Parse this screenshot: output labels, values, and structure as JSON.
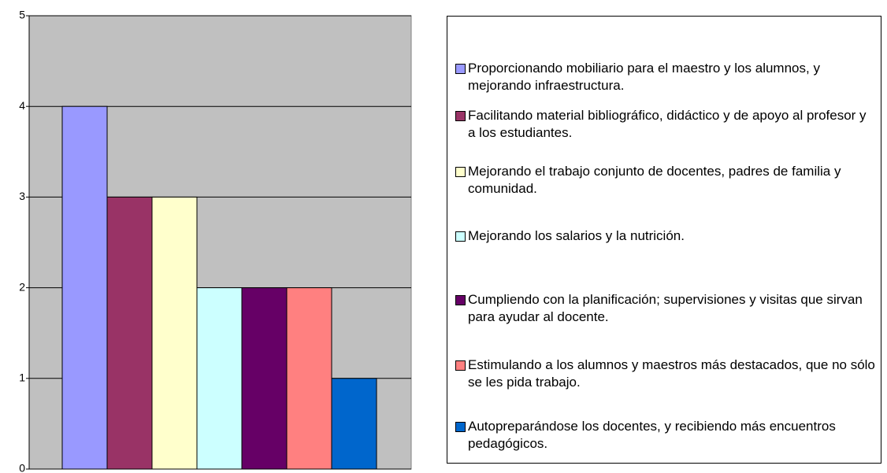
{
  "chart_data": {
    "type": "bar",
    "series": [
      {
        "name": "Proporcionando mobiliario para el maestro y los alumnos, y mejorando infraestructura.",
        "color": "#9999ff",
        "values": [
          4
        ]
      },
      {
        "name": "Facilitando material bibliográfico, didáctico y de apoyo al profesor y a los estudiantes.",
        "color": "#993366",
        "values": [
          3
        ]
      },
      {
        "name": "Mejorando el trabajo conjunto de docentes, padres de familia y comunidad.",
        "color": "#ffffcc",
        "values": [
          3
        ]
      },
      {
        "name": "Mejorando los salarios y la nutrición.",
        "color": "#ccffff",
        "values": [
          2
        ]
      },
      {
        "name": "Cumpliendo con la planificación; supervisiones y visitas que sirvan para ayudar al docente.",
        "color": "#660066",
        "values": [
          2
        ]
      },
      {
        "name": "Estimulando a los alumnos y maestros más destacados, que no sólo se les pida trabajo.",
        "color": "#ff8080",
        "values": [
          2
        ]
      },
      {
        "name": "Autopreparándose los docentes, y recibiendo más encuentros pedagógicos.",
        "color": "#0066cc",
        "values": [
          1
        ]
      }
    ],
    "ylim": [
      0,
      5
    ],
    "yticks": [
      0,
      1,
      2,
      3,
      4,
      5
    ],
    "grid": true,
    "legend": "right"
  }
}
